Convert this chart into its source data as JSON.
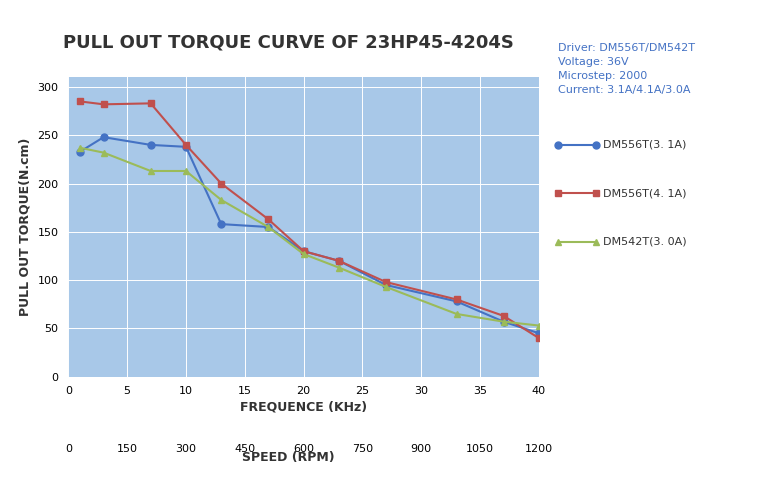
{
  "title": "PULL OUT TORQUE CURVE OF 23HP45-4204S",
  "xlabel_freq": "FREQUENCE (KHz)",
  "xlabel_rpm": "SPEED (RPM)",
  "ylabel": "PULL OUT TORQUE(N.cm)",
  "annotation_lines": [
    "Driver: DM556T/DM542T",
    "Voltage: 36V",
    "Microstep: 2000",
    "Current: 3.1A/4.1A/3.0A"
  ],
  "freq_ticks": [
    0,
    5,
    10,
    15,
    20,
    25,
    30,
    35,
    40
  ],
  "rpm_ticks": [
    0,
    150,
    300,
    450,
    600,
    750,
    900,
    1050,
    1200
  ],
  "ylim": [
    0,
    310
  ],
  "yticks": [
    0,
    50,
    100,
    150,
    200,
    250,
    300
  ],
  "xlim": [
    0,
    40
  ],
  "series": [
    {
      "label": "DM556T(3. 1A)",
      "color": "#4472C4",
      "marker": "o",
      "markersize": 5,
      "x": [
        1,
        3,
        7,
        10,
        13,
        17,
        20,
        23,
        27,
        33,
        37,
        40
      ],
      "y": [
        233,
        248,
        240,
        238,
        158,
        155,
        130,
        120,
        95,
        78,
        57,
        45
      ]
    },
    {
      "label": "DM556T(4. 1A)",
      "color": "#C0504D",
      "marker": "s",
      "markersize": 5,
      "x": [
        1,
        3,
        7,
        10,
        13,
        17,
        20,
        23,
        27,
        33,
        37,
        40
      ],
      "y": [
        285,
        282,
        283,
        240,
        200,
        163,
        130,
        120,
        98,
        80,
        63,
        40
      ]
    },
    {
      "label": "DM542T(3. 0A)",
      "color": "#9BBB59",
      "marker": "^",
      "markersize": 5,
      "x": [
        1,
        3,
        7,
        10,
        13,
        17,
        20,
        23,
        27,
        33,
        37,
        40
      ],
      "y": [
        237,
        232,
        213,
        213,
        183,
        155,
        127,
        113,
        93,
        65,
        57,
        53
      ]
    }
  ],
  "plot_bg_color": "#A8C8E8",
  "fig_bg_color": "#FFFFFF",
  "grid_color": "#FFFFFF",
  "annotation_color": "#4472C4",
  "title_fontsize": 13,
  "label_fontsize": 9,
  "tick_fontsize": 8,
  "annotation_fontsize": 8,
  "legend_fontsize": 8
}
